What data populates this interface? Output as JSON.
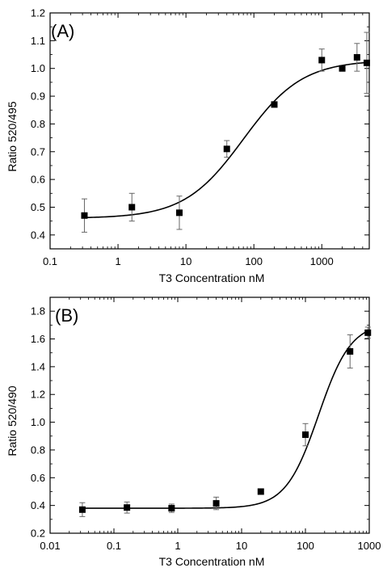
{
  "chart_data": [
    {
      "type": "scatter",
      "panel_label": "(A)",
      "xlabel": "T3 Concentration nM",
      "ylabel": "Ratio 520/495",
      "xscale": "log",
      "xlim": [
        0.1,
        5000
      ],
      "ylim": [
        0.35,
        1.2
      ],
      "x_tick_labels": [
        "0.1",
        "1",
        "10",
        "100",
        "1000"
      ],
      "y_tick_labels": [
        "0.4",
        "0.5",
        "0.6",
        "0.7",
        "0.8",
        "0.9",
        "1.0",
        "1.1",
        "1.2"
      ],
      "points": [
        {
          "x": 0.32,
          "y": 0.47,
          "err": 0.06
        },
        {
          "x": 1.6,
          "y": 0.5,
          "err": 0.05
        },
        {
          "x": 8,
          "y": 0.48,
          "err": 0.06
        },
        {
          "x": 40,
          "y": 0.71,
          "err": 0.03
        },
        {
          "x": 200,
          "y": 0.87,
          "err": 0.0
        },
        {
          "x": 1000,
          "y": 1.03,
          "err": 0.04
        },
        {
          "x": 2000,
          "y": 1.0,
          "err": 0.0
        },
        {
          "x": 3300,
          "y": 1.04,
          "err": 0.05
        },
        {
          "x": 4600,
          "y": 1.02,
          "err": 0.11
        }
      ],
      "fit": {
        "bottom": 0.46,
        "top": 1.03,
        "ec50": 70,
        "hill": 1.0
      }
    },
    {
      "type": "scatter",
      "panel_label": "(B)",
      "xlabel": "T3 Concentration nM",
      "ylabel": "Ratio 520/490",
      "xscale": "log",
      "xlim": [
        0.01,
        1000
      ],
      "ylim": [
        0.2,
        1.9
      ],
      "x_tick_labels": [
        "0.01",
        "0.1",
        "1",
        "10",
        "100",
        "1000"
      ],
      "y_tick_labels": [
        "0.2",
        "0.4",
        "0.6",
        "0.8",
        "1.0",
        "1.2",
        "1.4",
        "1.6",
        "1.8"
      ],
      "points": [
        {
          "x": 0.032,
          "y": 0.37,
          "err": 0.05
        },
        {
          "x": 0.16,
          "y": 0.385,
          "err": 0.04
        },
        {
          "x": 0.8,
          "y": 0.38,
          "err": 0.03
        },
        {
          "x": 4,
          "y": 0.415,
          "err": 0.045
        },
        {
          "x": 20,
          "y": 0.5,
          "err": 0.0
        },
        {
          "x": 100,
          "y": 0.91,
          "err": 0.08
        },
        {
          "x": 500,
          "y": 1.51,
          "err": 0.12
        },
        {
          "x": 950,
          "y": 1.645,
          "err": 0.04
        }
      ],
      "fit": {
        "bottom": 0.38,
        "top": 1.72,
        "ec50": 160,
        "hill": 1.7
      }
    }
  ]
}
